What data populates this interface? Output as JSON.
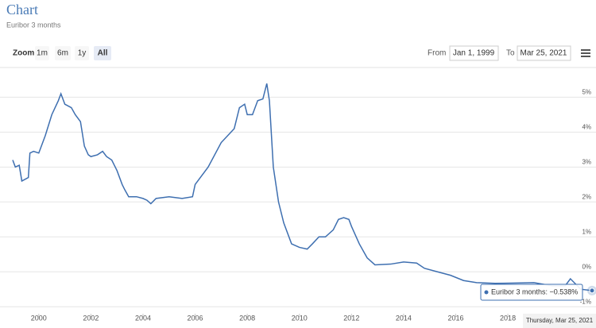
{
  "chart_data": {
    "type": "line",
    "title": "Chart",
    "subtitle": "Euribor 3 months",
    "zoom": {
      "label": "Zoom",
      "buttons": [
        "1m",
        "6m",
        "1y",
        "All"
      ],
      "active": "All"
    },
    "range": {
      "from_label": "From",
      "from": "Jan 1, 1999",
      "to_label": "To",
      "to": "Mar 25, 2021"
    },
    "x": [
      1999.0,
      1999.1,
      1999.25,
      1999.35,
      1999.6,
      1999.66,
      1999.8,
      2000.0,
      2000.25,
      2000.5,
      2000.75,
      2000.85,
      2001.0,
      2001.25,
      2001.4,
      2001.6,
      2001.75,
      2001.9,
      2002.0,
      2002.25,
      2002.45,
      2002.6,
      2002.8,
      2003.0,
      2003.2,
      2003.3,
      2003.45,
      2003.75,
      2004.0,
      2004.15,
      2004.3,
      2004.5,
      2005.0,
      2005.5,
      2005.9,
      2006.0,
      2006.5,
      2007.0,
      2007.5,
      2007.7,
      2007.9,
      2008.0,
      2008.2,
      2008.4,
      2008.6,
      2008.75,
      2008.85,
      2009.0,
      2009.2,
      2009.4,
      2009.7,
      2010.0,
      2010.3,
      2010.5,
      2010.75,
      2011.0,
      2011.3,
      2011.5,
      2011.7,
      2011.9,
      2012.0,
      2012.3,
      2012.6,
      2012.9,
      2013.5,
      2014.0,
      2014.5,
      2014.8,
      2015.3,
      2015.8,
      2016.3,
      2016.8,
      2017.5,
      2018.5,
      2019.0,
      2019.7,
      2020.2,
      2020.4,
      2020.8,
      2021.23
    ],
    "series": [
      {
        "name": "Euribor 3 months",
        "color": "#3e6fb0",
        "values": [
          3.2,
          3.0,
          3.05,
          2.6,
          2.7,
          3.4,
          3.45,
          3.4,
          3.9,
          4.5,
          4.9,
          5.1,
          4.8,
          4.7,
          4.5,
          4.3,
          3.6,
          3.35,
          3.3,
          3.35,
          3.45,
          3.3,
          3.2,
          2.9,
          2.5,
          2.35,
          2.15,
          2.15,
          2.1,
          2.05,
          1.95,
          2.1,
          2.15,
          2.1,
          2.15,
          2.5,
          3.0,
          3.7,
          4.1,
          4.7,
          4.8,
          4.5,
          4.5,
          4.9,
          4.95,
          5.39,
          4.9,
          3.0,
          2.0,
          1.4,
          0.8,
          0.7,
          0.65,
          0.8,
          1.0,
          1.0,
          1.2,
          1.5,
          1.55,
          1.5,
          1.3,
          0.8,
          0.4,
          0.2,
          0.22,
          0.28,
          0.25,
          0.1,
          0.0,
          -0.1,
          -0.25,
          -0.31,
          -0.33,
          -0.32,
          -0.31,
          -0.4,
          -0.4,
          -0.2,
          -0.5,
          -0.538
        ]
      }
    ],
    "xlim": [
      1999.0,
      2021.23
    ],
    "xticks": [
      2000,
      2002,
      2004,
      2006,
      2008,
      2010,
      2012,
      2014,
      2016,
      2018
    ],
    "ylim": [
      -1.2,
      5.85
    ],
    "yticks": [
      {
        "value": 5,
        "label": "5%"
      },
      {
        "value": 4,
        "label": "4%"
      },
      {
        "value": 3,
        "label": "3%"
      },
      {
        "value": 2,
        "label": "2%"
      },
      {
        "value": 1,
        "label": "1%"
      },
      {
        "value": 0,
        "label": "0%"
      },
      {
        "value": -1,
        "label": "-1%"
      }
    ],
    "grid": true,
    "tooltip": "Euribor 3 months: −0.538%",
    "tooltip_date": "Thursday, Mar 25, 2021"
  }
}
